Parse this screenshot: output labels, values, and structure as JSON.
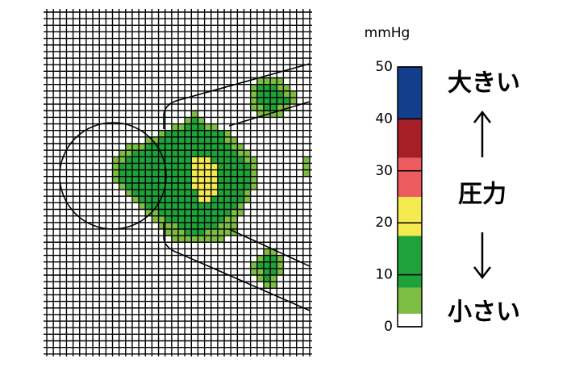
{
  "legend": {
    "unit": "mmHg",
    "min": 0,
    "max": 50,
    "ticks": [
      0,
      10,
      20,
      30,
      40,
      50
    ],
    "bands": [
      {
        "from": 0,
        "to": 2.5,
        "color": "#ffffff"
      },
      {
        "from": 2.5,
        "to": 7.5,
        "color": "#7dbd43"
      },
      {
        "from": 7.5,
        "to": 17.5,
        "color": "#1fa23a"
      },
      {
        "from": 17.5,
        "to": 25,
        "color": "#f4ea50"
      },
      {
        "from": 25,
        "to": 32.5,
        "color": "#ec5b5d"
      },
      {
        "from": 32.5,
        "to": 40,
        "color": "#a71f26"
      },
      {
        "from": 40,
        "to": 50,
        "color": "#123e8b"
      }
    ]
  },
  "labels": {
    "high": "大きい",
    "quantity": "圧力",
    "low": "小さい"
  },
  "pressure_map": {
    "rows": [
      {
        "row": 10,
        "col": 32,
        "values": [
          5,
          5,
          5,
          5
        ]
      },
      {
        "row": 11,
        "col": 31,
        "values": [
          5,
          12,
          12,
          12,
          5,
          5
        ]
      },
      {
        "row": 12,
        "col": 31,
        "values": [
          5,
          12,
          12,
          12,
          12,
          5,
          5
        ]
      },
      {
        "row": 13,
        "col": 31,
        "values": [
          5,
          12,
          12,
          12,
          12,
          12,
          5
        ]
      },
      {
        "row": 14,
        "col": 31,
        "values": [
          5,
          5,
          12,
          12,
          5,
          5
        ]
      },
      {
        "row": 15,
        "col": 32,
        "values": [
          5,
          5,
          5,
          5
        ]
      },
      {
        "row": 15,
        "col": 22,
        "values": [
          5
        ]
      },
      {
        "row": 16,
        "col": 21,
        "values": [
          5,
          12,
          5
        ]
      },
      {
        "row": 17,
        "col": 19,
        "values": [
          5,
          5,
          12,
          12,
          12,
          5,
          5
        ]
      },
      {
        "row": 18,
        "col": 17,
        "values": [
          5,
          12,
          12,
          12,
          12,
          12,
          12,
          12,
          12,
          12,
          5
        ]
      },
      {
        "row": 19,
        "col": 15,
        "values": [
          5,
          5,
          12,
          12,
          12,
          12,
          12,
          12,
          12,
          12,
          12,
          12,
          5,
          5
        ]
      },
      {
        "row": 20,
        "col": 12,
        "values": [
          5,
          5,
          5,
          12,
          12,
          12,
          12,
          12,
          12,
          12,
          12,
          12,
          12,
          12,
          12,
          12,
          5,
          5
        ]
      },
      {
        "row": 21,
        "col": 11,
        "values": [
          5,
          5,
          12,
          12,
          12,
          12,
          12,
          12,
          12,
          12,
          12,
          12,
          12,
          12,
          12,
          12,
          12,
          12,
          5,
          5
        ]
      },
      {
        "row": 22,
        "col": 10,
        "values": [
          5,
          5,
          12,
          12,
          12,
          12,
          12,
          12,
          12,
          12,
          12,
          12,
          22,
          22,
          22,
          12,
          12,
          12,
          12,
          12,
          5,
          5
        ]
      },
      {
        "row": 23,
        "col": 10,
        "values": [
          5,
          12,
          12,
          12,
          12,
          12,
          12,
          12,
          12,
          12,
          12,
          12,
          22,
          22,
          22,
          22,
          12,
          12,
          12,
          12,
          12,
          5
        ]
      },
      {
        "row": 24,
        "col": 10,
        "values": [
          5,
          12,
          12,
          12,
          12,
          12,
          12,
          12,
          12,
          12,
          12,
          12,
          22,
          22,
          22,
          22,
          12,
          12,
          12,
          12,
          12,
          5
        ]
      },
      {
        "row": 25,
        "col": 10,
        "values": [
          5,
          12,
          12,
          12,
          12,
          12,
          12,
          12,
          12,
          12,
          12,
          12,
          22,
          22,
          22,
          22,
          12,
          12,
          12,
          12,
          12,
          5
        ]
      },
      {
        "row": 26,
        "col": 11,
        "values": [
          5,
          12,
          12,
          12,
          12,
          12,
          12,
          12,
          12,
          12,
          12,
          22,
          22,
          22,
          22,
          12,
          12,
          12,
          12,
          12,
          5
        ]
      },
      {
        "row": 27,
        "col": 12,
        "values": [
          5,
          12,
          12,
          12,
          12,
          12,
          12,
          12,
          12,
          12,
          12,
          22,
          22,
          22,
          12,
          12,
          12,
          12,
          5
        ]
      },
      {
        "row": 28,
        "col": 13,
        "values": [
          5,
          12,
          12,
          12,
          12,
          12,
          12,
          12,
          12,
          12,
          22,
          22,
          12,
          12,
          12,
          12,
          12,
          5
        ]
      },
      {
        "row": 29,
        "col": 14,
        "values": [
          5,
          12,
          12,
          12,
          12,
          12,
          12,
          12,
          12,
          12,
          12,
          12,
          12,
          12,
          12,
          5
        ]
      },
      {
        "row": 30,
        "col": 15,
        "values": [
          5,
          5,
          12,
          12,
          12,
          12,
          12,
          12,
          12,
          12,
          12,
          12,
          12,
          5,
          5
        ]
      },
      {
        "row": 31,
        "col": 16,
        "values": [
          5,
          5,
          12,
          12,
          12,
          12,
          12,
          12,
          12,
          12,
          12,
          5,
          5
        ]
      },
      {
        "row": 32,
        "col": 17,
        "values": [
          5,
          5,
          5,
          12,
          12,
          12,
          12,
          12,
          12,
          5,
          5,
          5
        ]
      },
      {
        "row": 33,
        "col": 18,
        "values": [
          5,
          5,
          5,
          12,
          12,
          12,
          5,
          5,
          5,
          5,
          5
        ]
      },
      {
        "row": 34,
        "col": 19,
        "values": [
          5,
          5,
          5,
          5,
          5,
          5,
          5,
          5
        ]
      },
      {
        "row": 22,
        "col": 39,
        "values": [
          5
        ]
      },
      {
        "row": 23,
        "col": 39,
        "values": [
          5
        ]
      },
      {
        "row": 24,
        "col": 39,
        "values": [
          5
        ]
      },
      {
        "row": 36,
        "col": 33,
        "values": [
          5,
          5
        ]
      },
      {
        "row": 37,
        "col": 32,
        "values": [
          5,
          12,
          12,
          5
        ]
      },
      {
        "row": 38,
        "col": 31,
        "values": [
          5,
          12,
          12,
          12,
          5
        ]
      },
      {
        "row": 39,
        "col": 31,
        "values": [
          5,
          5,
          12,
          12,
          5
        ]
      },
      {
        "row": 40,
        "col": 32,
        "values": [
          5,
          12,
          5
        ]
      },
      {
        "row": 41,
        "col": 33,
        "values": [
          5,
          5
        ]
      }
    ]
  }
}
